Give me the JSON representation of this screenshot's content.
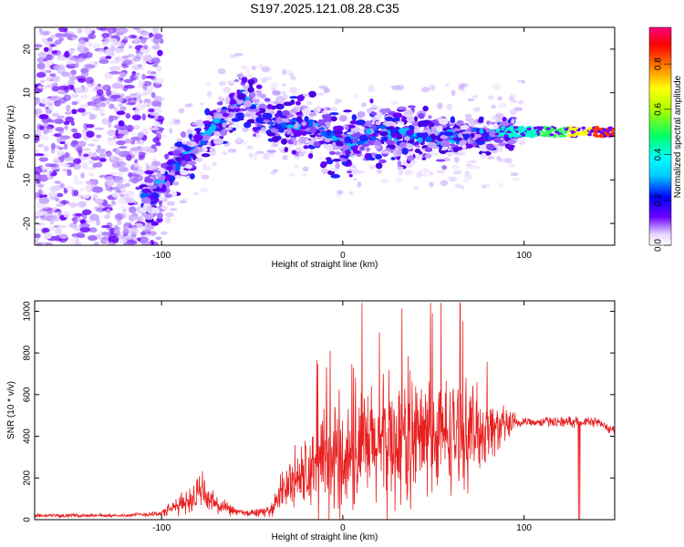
{
  "chart_data": [
    {
      "type": "heatmap",
      "title": "S197.2025.121.08.28.C35",
      "xlabel": "Height of straight line (km)",
      "ylabel": "Frequency (Hz)",
      "xlim": [
        -170,
        150
      ],
      "ylim": [
        -25,
        25
      ],
      "x_ticks": [
        -100,
        0,
        100
      ],
      "y_ticks": [
        -20,
        -10,
        0,
        10,
        20
      ],
      "colorbar": {
        "label": "Normalized spectral amplitude",
        "range": [
          0,
          1
        ],
        "ticks": [
          "0.0",
          "0.2",
          "0.4",
          "0.6",
          "0.8"
        ],
        "colors": [
          "#ffffff",
          "#6a00ff",
          "#0000ff",
          "#00ffff",
          "#00ff00",
          "#ffff00",
          "#ff8000",
          "#ff0000",
          "#ff0080"
        ]
      },
      "ridge": {
        "description_points": [
          {
            "x": -105,
            "y": -14
          },
          {
            "x": -90,
            "y": -6
          },
          {
            "x": -75,
            "y": 0
          },
          {
            "x": -55,
            "y": 9
          },
          {
            "x": -40,
            "y": 3
          },
          {
            "x": -20,
            "y": 3
          },
          {
            "x": 0,
            "y": -2
          },
          {
            "x": 20,
            "y": 1
          },
          {
            "x": 40,
            "y": 0
          },
          {
            "x": 60,
            "y": 0
          },
          {
            "x": 80,
            "y": 0
          },
          {
            "x": 95,
            "y": 1
          },
          {
            "x": 120,
            "y": 1
          },
          {
            "x": 150,
            "y": 1
          }
        ]
      }
    },
    {
      "type": "line",
      "xlabel": "Height of straight line (km)",
      "ylabel": "SNR (10 * v/v)",
      "xlim": [
        -170,
        150
      ],
      "ylim": [
        0,
        1050
      ],
      "x_ticks": [
        -100,
        0,
        100
      ],
      "y_ticks": [
        0,
        200,
        400,
        600,
        800,
        1000
      ],
      "color": "#e82020",
      "envelope": [
        {
          "x": -170,
          "base": 20,
          "amp": 10
        },
        {
          "x": -120,
          "base": 20,
          "amp": 10
        },
        {
          "x": -100,
          "base": 30,
          "amp": 20
        },
        {
          "x": -90,
          "base": 70,
          "amp": 60
        },
        {
          "x": -78,
          "base": 130,
          "amp": 120
        },
        {
          "x": -68,
          "base": 60,
          "amp": 50
        },
        {
          "x": -55,
          "base": 30,
          "amp": 20
        },
        {
          "x": -40,
          "base": 40,
          "amp": 30
        },
        {
          "x": -33,
          "base": 150,
          "amp": 120
        },
        {
          "x": -25,
          "base": 200,
          "amp": 200
        },
        {
          "x": -10,
          "base": 250,
          "amp": 300
        },
        {
          "x": 10,
          "base": 330,
          "amp": 350
        },
        {
          "x": 30,
          "base": 380,
          "amp": 400
        },
        {
          "x": 50,
          "base": 400,
          "amp": 350
        },
        {
          "x": 70,
          "base": 420,
          "amp": 300
        },
        {
          "x": 90,
          "base": 450,
          "amp": 100
        },
        {
          "x": 100,
          "base": 470,
          "amp": 30
        },
        {
          "x": 130,
          "base": 470,
          "amp": 30
        },
        {
          "x": 140,
          "base": 470,
          "amp": 30
        },
        {
          "x": 150,
          "base": 420,
          "amp": 30
        }
      ]
    }
  ]
}
